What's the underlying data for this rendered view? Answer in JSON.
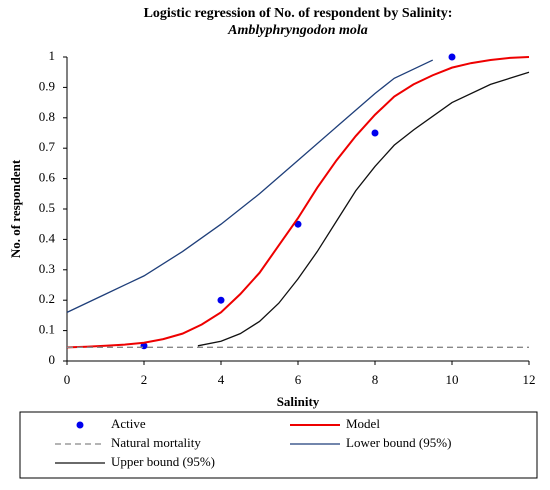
{
  "chart_data": {
    "type": "line",
    "title": "Logistic regression of No. of respondent by Salinity:",
    "subtitle": "Amblyphryngodon mola",
    "x_label": "Salinity",
    "y_label": "No. of respondent",
    "xlim": [
      0,
      12
    ],
    "xticks": [
      0,
      2,
      4,
      6,
      8,
      10,
      12
    ],
    "ylim": [
      0,
      1
    ],
    "yticks": [
      0,
      0.1,
      0.2,
      0.3,
      0.4,
      0.5,
      0.6,
      0.7,
      0.8,
      0.9,
      1
    ],
    "grid": false,
    "legend": "bottom",
    "series": [
      {
        "name": "Active",
        "color": "#0000ee",
        "style": "markers",
        "x": [
          2,
          4,
          6,
          8,
          10
        ],
        "values": [
          0.05,
          0.2,
          0.45,
          0.75,
          1.0
        ]
      },
      {
        "name": "Model",
        "color": "#ee0000",
        "style": "line",
        "x": [
          0,
          0.5,
          1,
          1.5,
          2,
          2.5,
          3,
          3.5,
          4,
          4.5,
          5,
          5.5,
          6,
          6.5,
          7,
          7.5,
          8,
          8.5,
          9,
          9.5,
          10,
          10.5,
          11,
          11.5,
          12
        ],
        "values": [
          0.045,
          0.047,
          0.05,
          0.054,
          0.06,
          0.072,
          0.09,
          0.12,
          0.16,
          0.22,
          0.29,
          0.38,
          0.47,
          0.57,
          0.66,
          0.74,
          0.81,
          0.87,
          0.91,
          0.94,
          0.965,
          0.98,
          0.99,
          0.997,
          1.0
        ]
      },
      {
        "name": "Natural mortality",
        "color": "#888888",
        "style": "dashed",
        "x": [
          0,
          12
        ],
        "values": [
          0.045,
          0.045
        ]
      },
      {
        "name": "Lower bound (95%)",
        "color": "#1f3f7a",
        "style": "line",
        "x": [
          0,
          1,
          2,
          3,
          4,
          5,
          6,
          7,
          8,
          8.5,
          9,
          9.5
        ],
        "values": [
          0.16,
          0.22,
          0.28,
          0.36,
          0.45,
          0.55,
          0.66,
          0.77,
          0.88,
          0.93,
          0.96,
          0.99
        ]
      },
      {
        "name": "Upper bound (95%)",
        "color": "#111111",
        "style": "line",
        "x": [
          3.4,
          4,
          4.5,
          5,
          5.5,
          6,
          6.5,
          7,
          7.5,
          8,
          8.5,
          9,
          10,
          11,
          12
        ],
        "values": [
          0.05,
          0.065,
          0.09,
          0.13,
          0.19,
          0.27,
          0.36,
          0.46,
          0.56,
          0.64,
          0.71,
          0.76,
          0.85,
          0.91,
          0.95
        ]
      }
    ]
  }
}
